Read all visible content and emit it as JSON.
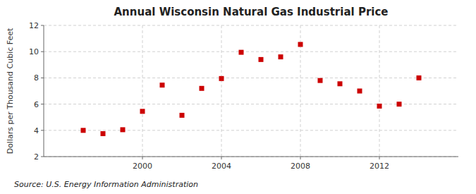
{
  "chart_data": {
    "type": "scatter",
    "title": "Annual Wisconsin Natural Gas Industrial Price",
    "ylabel": "Dollars per Thousand Cubic Feet",
    "annotations": [
      "Source: U.S. Energy Information Administration"
    ],
    "x": [
      1997,
      1998,
      1999,
      2000,
      2001,
      2002,
      2003,
      2004,
      2005,
      2006,
      2007,
      2008,
      2009,
      2010,
      2011,
      2012,
      2013,
      2014
    ],
    "values": [
      4.0,
      3.75,
      4.05,
      5.45,
      7.45,
      5.15,
      7.2,
      7.95,
      9.95,
      9.4,
      9.6,
      10.55,
      7.8,
      7.55,
      7.0,
      5.85,
      6.0,
      8.0
    ],
    "color": "#cc0000",
    "marker": "square",
    "xlim": [
      1995,
      2016
    ],
    "ylim": [
      2,
      12
    ],
    "xticks": [
      2000,
      2004,
      2008,
      2012
    ],
    "yticks": [
      2,
      4,
      6,
      8,
      10,
      12
    ],
    "grid": true
  }
}
